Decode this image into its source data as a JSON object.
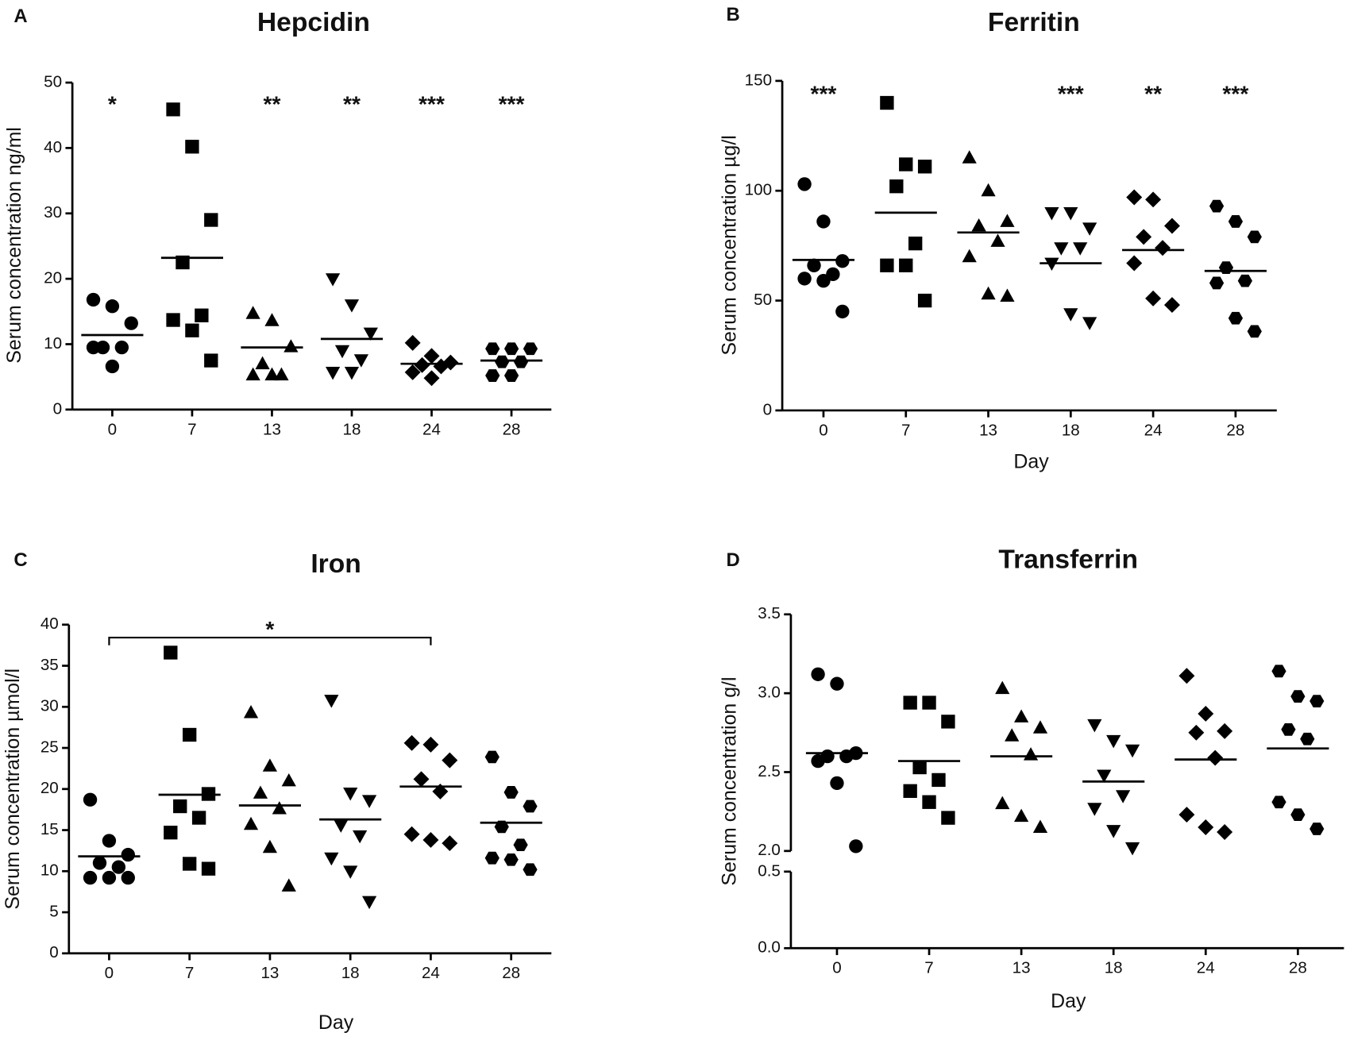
{
  "chart_data": [
    {
      "type": "dotplot",
      "panel_label": "A",
      "title": "Hepcidin",
      "ylabel": "Serum concentration ng/ml",
      "categories": [
        "0",
        "7",
        "13",
        "18",
        "24",
        "28"
      ],
      "markers": [
        "circle",
        "square",
        "triangle-up",
        "triangle-down",
        "diamond",
        "hexagon"
      ],
      "color": "#000000",
      "groups": [
        [
          16.8,
          15.8,
          13.2,
          9.5,
          9.5,
          9.5,
          6.6
        ],
        [
          45.9,
          40.2,
          29,
          22.5,
          14.4,
          13.7,
          12.1,
          7.5
        ],
        [
          14.7,
          13.6,
          9.6,
          7.0,
          5.3,
          5.3,
          5.3
        ],
        [
          20,
          16,
          11.7,
          9,
          7.6,
          5.7,
          5.7
        ],
        [
          10.2,
          8.2,
          7.2,
          6.8,
          6.6,
          5.7,
          4.8
        ],
        [
          9.3,
          9.3,
          9.3,
          7.3,
          7.3,
          5.2,
          5.2
        ]
      ],
      "means": [
        11.4,
        23.2,
        9.5,
        10.8,
        7.0,
        7.5
      ],
      "annotations": [
        "*",
        null,
        "**",
        "**",
        "***",
        "***"
      ],
      "ylim": [
        0,
        50
      ],
      "yticks": [
        0,
        10,
        20,
        30,
        40,
        50
      ]
    },
    {
      "type": "dotplot",
      "panel_label": "B",
      "title": "Ferritin",
      "ylabel": "Serum concentration µg/l",
      "xlabel": "Day",
      "categories": [
        "0",
        "7",
        "13",
        "18",
        "24",
        "28"
      ],
      "markers": [
        "circle",
        "square",
        "triangle-up",
        "triangle-down",
        "diamond",
        "hexagon"
      ],
      "color": "#000000",
      "groups": [
        [
          103,
          86,
          68,
          66,
          62,
          60,
          59,
          45
        ],
        [
          140,
          112,
          111,
          102,
          76,
          66,
          66,
          50
        ],
        [
          115,
          100,
          86,
          84,
          77,
          70,
          53,
          52
        ],
        [
          90,
          90,
          83,
          74,
          74,
          67,
          44,
          40
        ],
        [
          97,
          96,
          84,
          79,
          74,
          67,
          51,
          48
        ],
        [
          93,
          86,
          79,
          65,
          59,
          58,
          42,
          36
        ]
      ],
      "means": [
        68.5,
        90,
        81,
        67,
        73,
        63.5
      ],
      "annotations": [
        "***",
        null,
        null,
        "***",
        "**",
        "***"
      ],
      "ylim": [
        0,
        150
      ],
      "yticks": [
        0,
        50,
        100,
        150
      ]
    },
    {
      "type": "dotplot",
      "panel_label": "C",
      "title": "Iron",
      "ylabel": "Serum concentration µmol/l",
      "xlabel": "Day",
      "categories": [
        "0",
        "7",
        "13",
        "18",
        "24",
        "28"
      ],
      "markers": [
        "circle",
        "square",
        "triangle-up",
        "triangle-down",
        "diamond",
        "hexagon"
      ],
      "color": "#000000",
      "groups": [
        [
          18.7,
          13.7,
          12,
          11,
          10.5,
          9.2,
          9.2,
          9.2
        ],
        [
          36.6,
          26.6,
          19.4,
          17.9,
          16.5,
          14.7,
          10.9,
          10.3
        ],
        [
          29.3,
          22.8,
          21,
          19.5,
          17.6,
          15.7,
          12.9,
          8.2
        ],
        [
          30.8,
          19.5,
          18.6,
          15.6,
          14.3,
          11.6,
          10,
          6.3
        ],
        [
          25.6,
          25.4,
          23.5,
          21.2,
          19.7,
          14.5,
          13.8,
          13.4
        ],
        [
          23.9,
          19.6,
          17.9,
          15.4,
          13.2,
          11.6,
          11.4,
          10.2
        ]
      ],
      "means": [
        11.8,
        19.3,
        18,
        16.3,
        20.3,
        15.9
      ],
      "bracket_span": [
        "0",
        "24"
      ],
      "bracket_label": "*",
      "ylim": [
        0,
        40
      ],
      "yticks": [
        0,
        5,
        10,
        15,
        20,
        25,
        30,
        35,
        40
      ]
    },
    {
      "type": "dotplot",
      "panel_label": "D",
      "title": "Transferrin",
      "ylabel": "Serum concentration g/l",
      "xlabel": "Day",
      "categories": [
        "0",
        "7",
        "13",
        "18",
        "24",
        "28"
      ],
      "markers": [
        "circle",
        "square",
        "triangle-up",
        "triangle-down",
        "diamond",
        "hexagon"
      ],
      "color": "#000000",
      "groups": [
        [
          3.12,
          3.06,
          2.62,
          2.6,
          2.6,
          2.57,
          2.43,
          2.03
        ],
        [
          2.94,
          2.94,
          2.82,
          2.53,
          2.45,
          2.38,
          2.31,
          2.21
        ],
        [
          3.03,
          2.85,
          2.78,
          2.73,
          2.61,
          2.3,
          2.22,
          2.15
        ],
        [
          2.8,
          2.7,
          2.64,
          2.48,
          2.35,
          2.27,
          2.13,
          2.02
        ],
        [
          3.11,
          2.87,
          2.76,
          2.75,
          2.59,
          2.23,
          2.15,
          2.12
        ],
        [
          3.14,
          2.98,
          2.95,
          2.77,
          2.71,
          2.31,
          2.23,
          2.14
        ]
      ],
      "means": [
        2.62,
        2.57,
        2.6,
        2.44,
        2.58,
        2.65
      ],
      "ylim": [
        0,
        3.5
      ],
      "ybreak": [
        0.5,
        2.0
      ],
      "yticks": [
        {
          "value": 0,
          "label": "0.0"
        },
        0.5,
        {
          "value": 2,
          "label": "2.0"
        },
        2.5,
        {
          "value": 3,
          "label": "3.0"
        },
        3.5
      ]
    }
  ]
}
